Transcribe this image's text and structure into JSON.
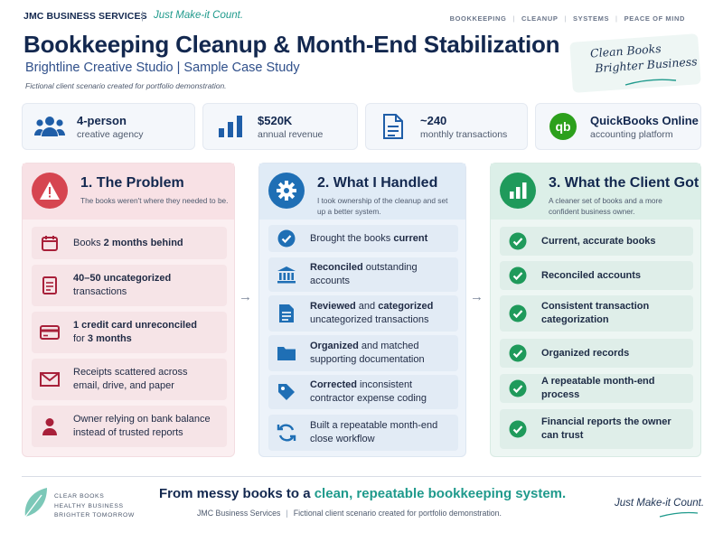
{
  "header": {
    "brand": "JMC BUSINESS SERVICES",
    "separator": "|",
    "tagline": "Just Make-it Count.",
    "nav": [
      "BOOKKEEPING",
      "CLEANUP",
      "SYSTEMS",
      "PEACE OF MIND"
    ],
    "title": "Bookkeeping Cleanup & Month-End Stabilization",
    "subtitle": "Brightline Creative Studio  |  Sample Case Study",
    "note": "Fictional client scenario created for portfolio demonstration.",
    "stamp_line1": "Clean Books",
    "stamp_line2": "Brighter Business"
  },
  "stats": [
    {
      "value": "4-person",
      "label": "creative agency",
      "icon": "team-icon"
    },
    {
      "value": "$520K",
      "label": "annual revenue",
      "icon": "bar-chart-icon"
    },
    {
      "value": "~240",
      "label": "monthly transactions",
      "icon": "document-icon"
    },
    {
      "value": "QuickBooks Online",
      "label": "accounting platform",
      "icon": "quickbooks-logo-icon"
    }
  ],
  "columns": {
    "problem": {
      "title": "1. The Problem",
      "subtitle": "The books weren't where they needed to be.",
      "items": [
        {
          "pre": "Books ",
          "bold": "2 months behind",
          "post": ""
        },
        {
          "pre": "",
          "bold": "40–50 uncategorized",
          "post": " transactions"
        },
        {
          "pre": "",
          "bold": "1 credit card unreconciled",
          "post": " for ",
          "bold2": "3 months"
        },
        {
          "pre": "Receipts scattered across email, drive, and paper",
          "bold": "",
          "post": ""
        },
        {
          "pre": "Owner relying on bank balance instead of trusted reports",
          "bold": "",
          "post": ""
        }
      ]
    },
    "handled": {
      "title": "2. What I Handled",
      "subtitle": "I took ownership of the cleanup and set up a better system.",
      "items": [
        {
          "pre": "Brought the books ",
          "bold": "current",
          "post": ""
        },
        {
          "pre": "",
          "bold": "Reconciled",
          "post": " outstanding accounts"
        },
        {
          "pre": "",
          "bold": "Reviewed",
          "post": " and ",
          "bold2": "categorized",
          "post2": " uncategorized transactions"
        },
        {
          "pre": "",
          "bold": "Organized",
          "post": " and matched supporting documentation"
        },
        {
          "pre": "",
          "bold": "Corrected",
          "post": " inconsistent contractor expense coding"
        },
        {
          "pre": "Built a repeatable month-end close workflow",
          "bold": "",
          "post": ""
        }
      ]
    },
    "result": {
      "title": "3. What the Client Got",
      "subtitle": "A cleaner set of books and a more confident business owner.",
      "items": [
        "Current, accurate books",
        "Reconciled accounts",
        "Consistent transaction categorization",
        "Organized records",
        "A repeatable month-end process",
        "Financial reports the owner can trust"
      ]
    }
  },
  "arrow": "→",
  "footer": {
    "lines": [
      "CLEAR BOOKS",
      "HEALTHY BUSINESS",
      "BRIGHTER TOMORROW"
    ],
    "headline_pre": "From messy books to a ",
    "headline_hl": "clean, repeatable bookkeeping system.",
    "sub_left": "JMC Business Services",
    "sub_sep": "|",
    "sub_right": "Fictional client scenario created for portfolio demonstration.",
    "tagline": "Just Make-it Count."
  },
  "colors": {
    "navy": "#13284f",
    "teal": "#1f9a8c",
    "problem_red": "#d64550",
    "handled_blue": "#1f6fb5",
    "result_green": "#1f9a5b",
    "quickbooks_green": "#2ca01c"
  }
}
